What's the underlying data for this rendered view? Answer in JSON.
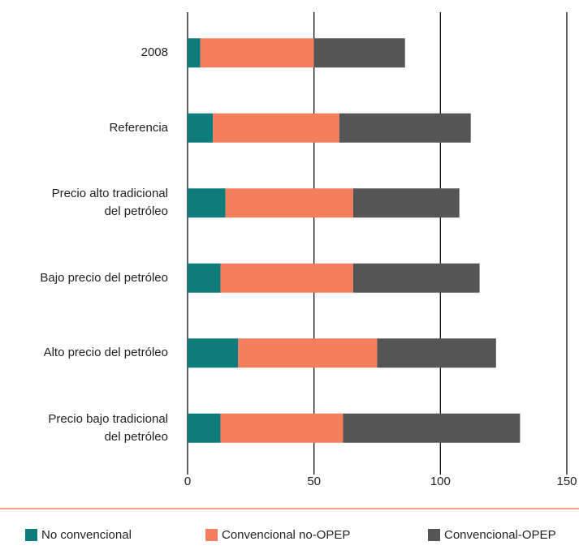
{
  "chart_data": {
    "type": "stacked-barh",
    "categories": [
      "2008",
      "Referencia",
      "Precio alto tradicional\ndel petróleo ",
      "Bajo precio del petróleo",
      "Alto precio del petróleo",
      "Precio bajo tradicional\ndel petróleo"
    ],
    "series": [
      {
        "name": "No convencional",
        "color": "#0f7c7c",
        "values": [
          5,
          10,
          15,
          13,
          20,
          13
        ]
      },
      {
        "name": "Convencional no-OPEP",
        "color": "#f47f5f",
        "values": [
          45,
          50,
          50.5,
          52.5,
          55,
          48.5
        ]
      },
      {
        "name": "Convencional-OPEP",
        "color": "#555555",
        "values": [
          36,
          52,
          42,
          50,
          47,
          70
        ]
      }
    ],
    "xlim": [
      0,
      150
    ],
    "xticks": [
      0,
      50,
      100,
      150
    ],
    "grid": true,
    "legend": "bottom"
  }
}
